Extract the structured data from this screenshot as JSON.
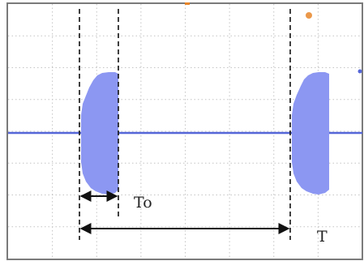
{
  "diagram": {
    "labels": {
      "pulse_width": "To",
      "period": "T"
    },
    "colors": {
      "background": "#ffffff",
      "frame": "#7a7a7a",
      "grid": "#c4c4c4",
      "trace": "#5566d8",
      "burst_fill": "#8c97f2",
      "marker": "#e8862a",
      "dimension": "#111111"
    }
  }
}
